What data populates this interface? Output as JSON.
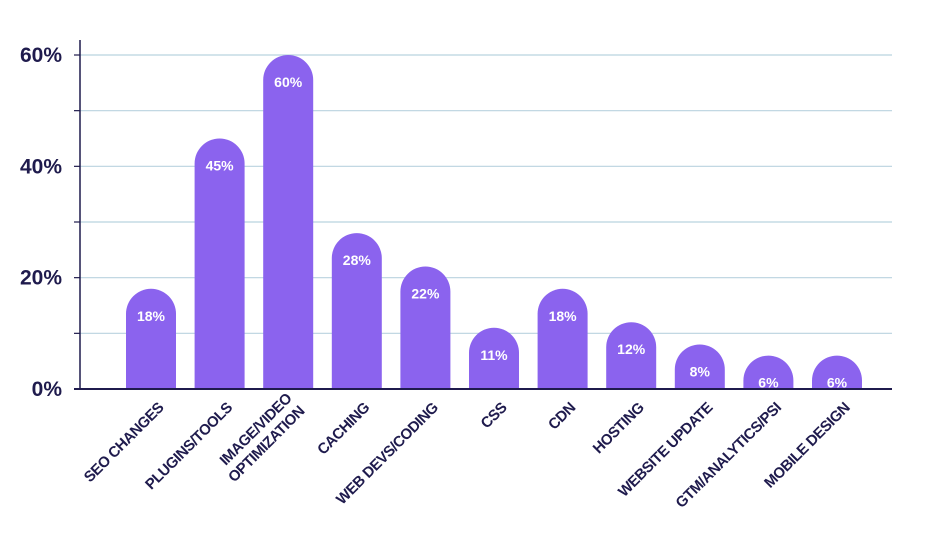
{
  "chart_data": {
    "type": "bar",
    "categories": [
      [
        "SEO CHANGES"
      ],
      [
        "PLUGINS/TOOLS"
      ],
      [
        "IMAGE/VIDEO",
        "OPTIMIZATION"
      ],
      [
        "CACHING"
      ],
      [
        "WEB DEVS/CODING"
      ],
      [
        "CSS"
      ],
      [
        "CDN"
      ],
      [
        "HOSTING"
      ],
      [
        "WEBSITE UPDATE"
      ],
      [
        "GTM/ANALYTICS/PSI"
      ],
      [
        "MOBILE DESIGN"
      ]
    ],
    "values": [
      18,
      45,
      60,
      28,
      22,
      11,
      18,
      12,
      8,
      6,
      6
    ],
    "data_labels": [
      "18%",
      "45%",
      "60%",
      "28%",
      "22%",
      "11%",
      "18%",
      "12%",
      "8%",
      "6%",
      "6%"
    ],
    "y_ticks": [
      0,
      20,
      40,
      60
    ],
    "y_tick_labels": [
      "0%",
      "20%",
      "40%",
      "60%"
    ],
    "ylim": [
      0,
      60
    ],
    "grid": true,
    "colors": {
      "bar": "#8b63ee",
      "grid": "#b9d3df",
      "axis": "#1f1b4d",
      "text": "#1f1b4d",
      "label": "#ffffff"
    }
  }
}
